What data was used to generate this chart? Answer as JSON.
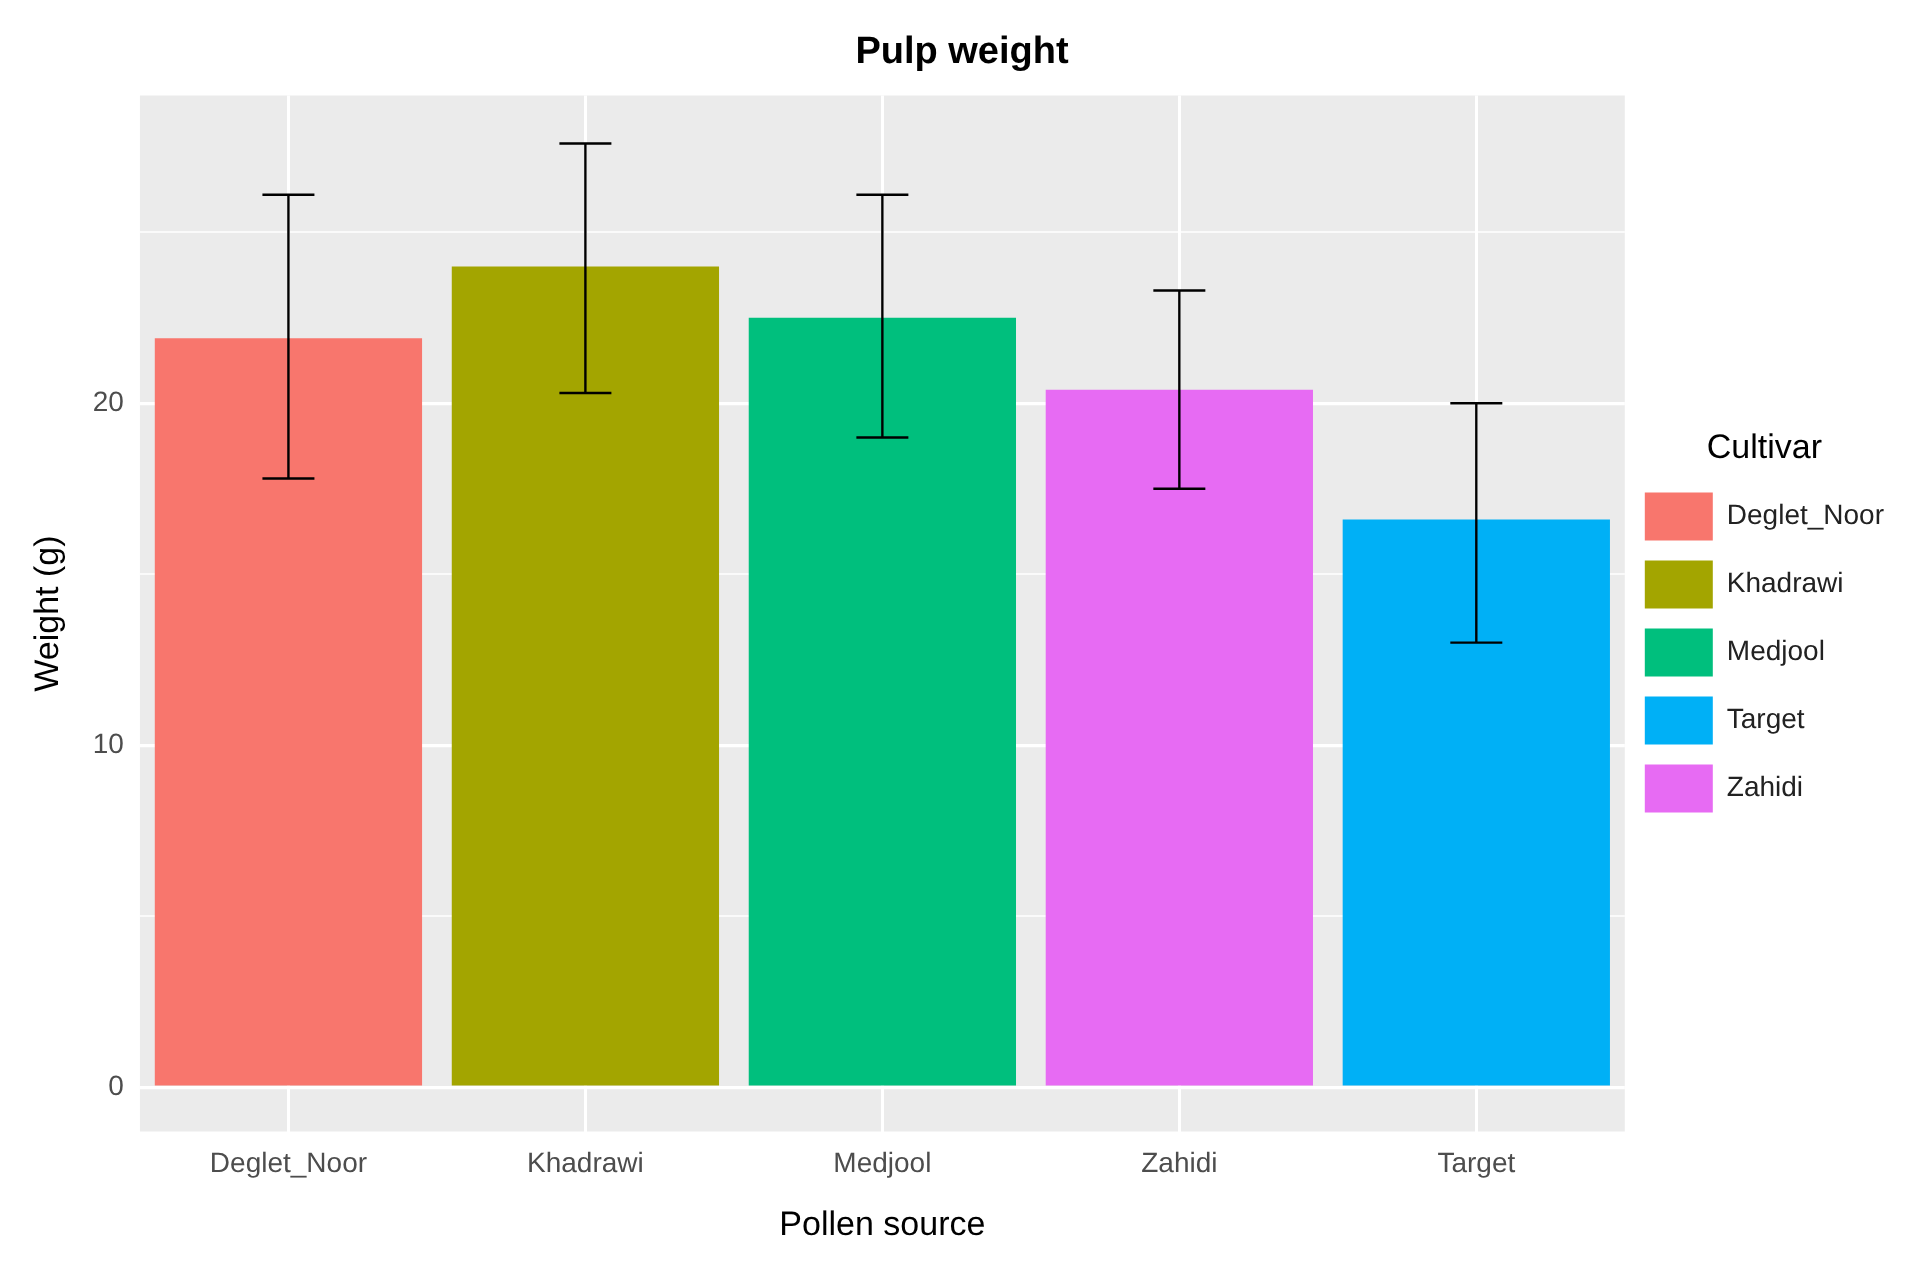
{
  "chart_data": {
    "type": "bar",
    "title": "Pulp weight",
    "xlabel": "Pollen source",
    "ylabel": "Weight (g)",
    "legend_title": "Cultivar",
    "categories": [
      "Deglet_Noor",
      "Khadrawi",
      "Medjool",
      "Zahidi",
      "Target"
    ],
    "series": [
      {
        "name": "Deglet_Noor",
        "color": "#f8766d",
        "values": [
          21.9,
          null,
          null,
          null,
          null
        ],
        "errors": [
          [
            17.8,
            26.1
          ],
          null,
          null,
          null,
          null
        ]
      },
      {
        "name": "Khadrawi",
        "color": "#a3a500",
        "values": [
          null,
          24.0,
          null,
          null,
          null
        ],
        "errors": [
          null,
          [
            20.3,
            27.6
          ],
          null,
          null,
          null
        ]
      },
      {
        "name": "Medjool",
        "color": "#00bf7d",
        "values": [
          null,
          null,
          22.5,
          null,
          null
        ],
        "errors": [
          null,
          null,
          [
            19.0,
            26.1
          ],
          null,
          null
        ]
      },
      {
        "name": "Target",
        "color": "#00b0f6",
        "values": [
          null,
          null,
          null,
          null,
          16.6
        ],
        "errors": [
          null,
          null,
          null,
          null,
          [
            13.0,
            20.0
          ]
        ]
      },
      {
        "name": "Zahidi",
        "color": "#e76bf3",
        "values": [
          null,
          null,
          null,
          20.4,
          null
        ],
        "errors": [
          null,
          null,
          null,
          [
            17.5,
            23.3
          ],
          null
        ]
      }
    ],
    "ylim": [
      -1.3,
      29
    ],
    "yticks": [
      0,
      {
        "value": 5,
        "label": null
      },
      10,
      {
        "value": 15,
        "label": null
      },
      20,
      {
        "value": 25,
        "label": null
      }
    ],
    "grid": true,
    "legend": "right"
  }
}
